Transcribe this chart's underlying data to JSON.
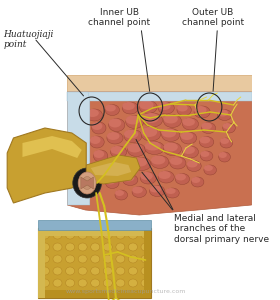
{
  "title": "",
  "bg_color": "#ffffff",
  "watermark": "www.sportsmedicineacupuncture.com",
  "labels": {
    "huatuojiaji": "Huatuojiaji\npoint",
    "inner_ub": "Inner UB\nchannel point",
    "outer_ub": "Outer UB\nchannel point",
    "medial_lateral": "Medial and lateral\nbranches of the\ndorsal primary nerve"
  },
  "colors": {
    "skin_top": "#e8c9a0",
    "muscle_red": "#c97050",
    "muscle_dark": "#b05a3a",
    "muscle_light": "#d4856a",
    "fascia_blue": "#c8dce8",
    "fascia_dark": "#a0c0d0",
    "bone_gold": "#c8a030",
    "bone_light": "#d4b050",
    "bone_dark": "#a07820",
    "bone_pale": "#e0c870",
    "spinal_cord": "#d4a080",
    "spinal_cord_dark": "#b88060",
    "nerve_yellow": "#d4c020",
    "nerve_light": "#e8d840",
    "disc_blue": "#8ab0c8",
    "text_color": "#2a2a2a",
    "annotation_line": "#2a2a2a",
    "circle_outline": "#2a2a2a",
    "watermark_color": "#a0a0a0",
    "canal_dark": "#1a1a1a"
  }
}
